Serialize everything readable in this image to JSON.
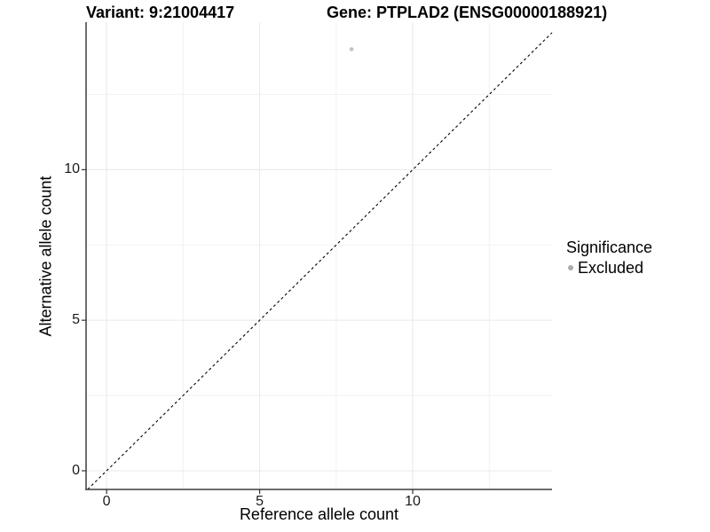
{
  "chart_data": {
    "type": "scatter",
    "title_left": "Variant: 9:21004417",
    "title_right": "Gene: PTPLAD2 (ENSG00000188921)",
    "xlabel": "Reference allele count",
    "ylabel": "Alternative allele count",
    "xlim": [
      -0.67,
      14.55
    ],
    "ylim": [
      -0.62,
      14.9
    ],
    "x_ticks": [
      0,
      5,
      10
    ],
    "y_ticks": [
      0,
      5,
      10
    ],
    "minor_ticks": [
      2.5,
      7.5,
      12.5
    ],
    "grid": "major+minor",
    "points": [
      {
        "x": 8,
        "y": 14,
        "series": "Excluded"
      }
    ],
    "reference_line": {
      "type": "identity",
      "style": "dashed",
      "from": -0.62,
      "to": 14.55
    },
    "legend": {
      "title": "Significance",
      "position": "right",
      "items": [
        {
          "label": "Excluded",
          "color": "#b3b3b3"
        }
      ]
    },
    "colors": {
      "point": "#c2c2c2",
      "legend_dot": "#ababab",
      "grid_major": "#e8e8e8",
      "grid_minor": "#f2f2f2",
      "axis_line": "#3d3d3d",
      "tick": "#333333",
      "dashed_line": "#000000",
      "background": "#ffffff"
    }
  }
}
